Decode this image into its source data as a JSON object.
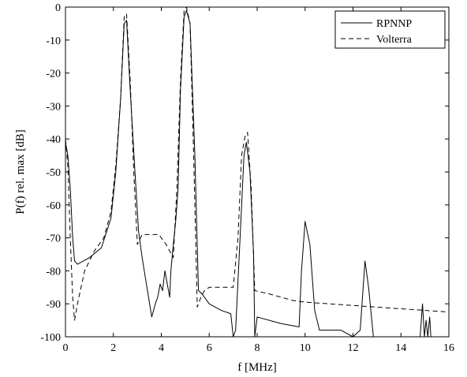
{
  "chart_data": {
    "type": "line",
    "title": "",
    "xlabel": "f [MHz]",
    "ylabel": "P(f) rel. max [dB]",
    "xlim": [
      0,
      16
    ],
    "ylim": [
      -100,
      0
    ],
    "xticks": [
      0,
      2,
      4,
      6,
      8,
      10,
      12,
      14,
      16
    ],
    "yticks": [
      0,
      -10,
      -20,
      -30,
      -40,
      -50,
      -60,
      -70,
      -80,
      -90,
      -100
    ],
    "grid": false,
    "legend_position": "top-right",
    "series": [
      {
        "name": "RPNNP",
        "line_style": "solid",
        "color": "#000000",
        "points": [
          [
            0.0,
            -41
          ],
          [
            0.1,
            -45
          ],
          [
            0.2,
            -55
          ],
          [
            0.3,
            -70
          ],
          [
            0.38,
            -77
          ],
          [
            0.5,
            -78
          ],
          [
            1.0,
            -76
          ],
          [
            1.5,
            -73
          ],
          [
            1.9,
            -64
          ],
          [
            2.1,
            -50
          ],
          [
            2.3,
            -28
          ],
          [
            2.45,
            -5
          ],
          [
            2.55,
            -4
          ],
          [
            2.7,
            -25
          ],
          [
            2.9,
            -50
          ],
          [
            3.05,
            -68
          ],
          [
            3.2,
            -76
          ],
          [
            3.4,
            -85
          ],
          [
            3.6,
            -94
          ],
          [
            3.75,
            -90
          ],
          [
            3.85,
            -88
          ],
          [
            3.95,
            -84
          ],
          [
            4.05,
            -86
          ],
          [
            4.15,
            -80
          ],
          [
            4.25,
            -84
          ],
          [
            4.3,
            -86
          ],
          [
            4.35,
            -88
          ],
          [
            4.4,
            -80
          ],
          [
            4.5,
            -72
          ],
          [
            4.6,
            -65
          ],
          [
            4.7,
            -55
          ],
          [
            4.8,
            -25
          ],
          [
            4.95,
            -3
          ],
          [
            5.05,
            -1
          ],
          [
            5.2,
            -5
          ],
          [
            5.4,
            -45
          ],
          [
            5.55,
            -86
          ],
          [
            5.7,
            -87
          ],
          [
            6.0,
            -90
          ],
          [
            6.5,
            -92
          ],
          [
            6.9,
            -93
          ],
          [
            7.0,
            -100
          ],
          [
            7.1,
            -98
          ],
          [
            7.3,
            -68
          ],
          [
            7.45,
            -45
          ],
          [
            7.55,
            -41
          ],
          [
            7.7,
            -50
          ],
          [
            7.85,
            -75
          ],
          [
            7.9,
            -100
          ],
          [
            8.0,
            -94
          ],
          [
            9.0,
            -96
          ],
          [
            9.75,
            -97
          ],
          [
            9.85,
            -80
          ],
          [
            10.0,
            -65
          ],
          [
            10.2,
            -72
          ],
          [
            10.4,
            -92
          ],
          [
            10.6,
            -98
          ],
          [
            11.5,
            -98
          ],
          [
            12.0,
            -100
          ],
          [
            12.3,
            -98
          ],
          [
            12.5,
            -77
          ],
          [
            12.65,
            -85
          ],
          [
            12.85,
            -100
          ],
          [
            13.5,
            -100
          ],
          [
            14.8,
            -100
          ],
          [
            14.9,
            -90
          ],
          [
            14.98,
            -100
          ],
          [
            15.05,
            -95
          ],
          [
            15.12,
            -100
          ],
          [
            15.2,
            -94
          ],
          [
            15.25,
            -100
          ]
        ]
      },
      {
        "name": "Volterra",
        "line_style": "dashed",
        "color": "#000000",
        "points": [
          [
            0.0,
            -40
          ],
          [
            0.1,
            -48
          ],
          [
            0.2,
            -70
          ],
          [
            0.3,
            -88
          ],
          [
            0.38,
            -95
          ],
          [
            0.5,
            -90
          ],
          [
            0.8,
            -80
          ],
          [
            1.2,
            -74
          ],
          [
            1.6,
            -70
          ],
          [
            1.9,
            -62
          ],
          [
            2.1,
            -48
          ],
          [
            2.3,
            -28
          ],
          [
            2.45,
            -3
          ],
          [
            2.55,
            -2
          ],
          [
            2.7,
            -22
          ],
          [
            2.85,
            -50
          ],
          [
            3.0,
            -72
          ],
          [
            3.2,
            -69
          ],
          [
            3.6,
            -69
          ],
          [
            3.9,
            -69
          ],
          [
            4.2,
            -72
          ],
          [
            4.5,
            -76
          ],
          [
            4.65,
            -55
          ],
          [
            4.8,
            -22
          ],
          [
            4.95,
            -1
          ],
          [
            5.05,
            0
          ],
          [
            5.2,
            -5
          ],
          [
            5.35,
            -45
          ],
          [
            5.5,
            -91
          ],
          [
            5.65,
            -88
          ],
          [
            5.8,
            -86
          ],
          [
            6.0,
            -85
          ],
          [
            6.3,
            -85
          ],
          [
            6.6,
            -85
          ],
          [
            7.0,
            -85
          ],
          [
            7.2,
            -70
          ],
          [
            7.35,
            -45
          ],
          [
            7.5,
            -39
          ],
          [
            7.6,
            -38
          ],
          [
            7.75,
            -55
          ],
          [
            7.9,
            -86
          ],
          [
            8.5,
            -87
          ],
          [
            9.0,
            -88
          ],
          [
            9.5,
            -89
          ],
          [
            10.0,
            -89.5
          ],
          [
            11.0,
            -90
          ],
          [
            12.0,
            -90.5
          ],
          [
            13.0,
            -91
          ],
          [
            14.0,
            -91.5
          ],
          [
            15.0,
            -92
          ],
          [
            16.0,
            -92.5
          ]
        ]
      }
    ]
  }
}
